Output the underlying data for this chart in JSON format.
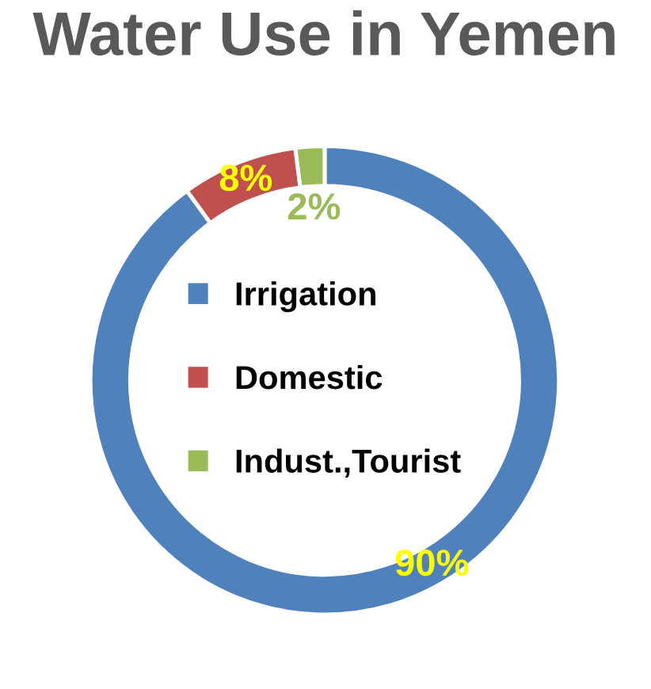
{
  "chart_data": {
    "type": "donut",
    "title": "Water Use in Yemen",
    "categories": [
      "Irrigation",
      "Domestic",
      "Indust.,Tourist"
    ],
    "values": [
      90,
      8,
      2
    ],
    "colors": [
      "#4f81bd",
      "#c0504d",
      "#9bbb59"
    ],
    "value_labels": [
      "90%",
      "8%",
      "2%"
    ],
    "legend": "center"
  }
}
